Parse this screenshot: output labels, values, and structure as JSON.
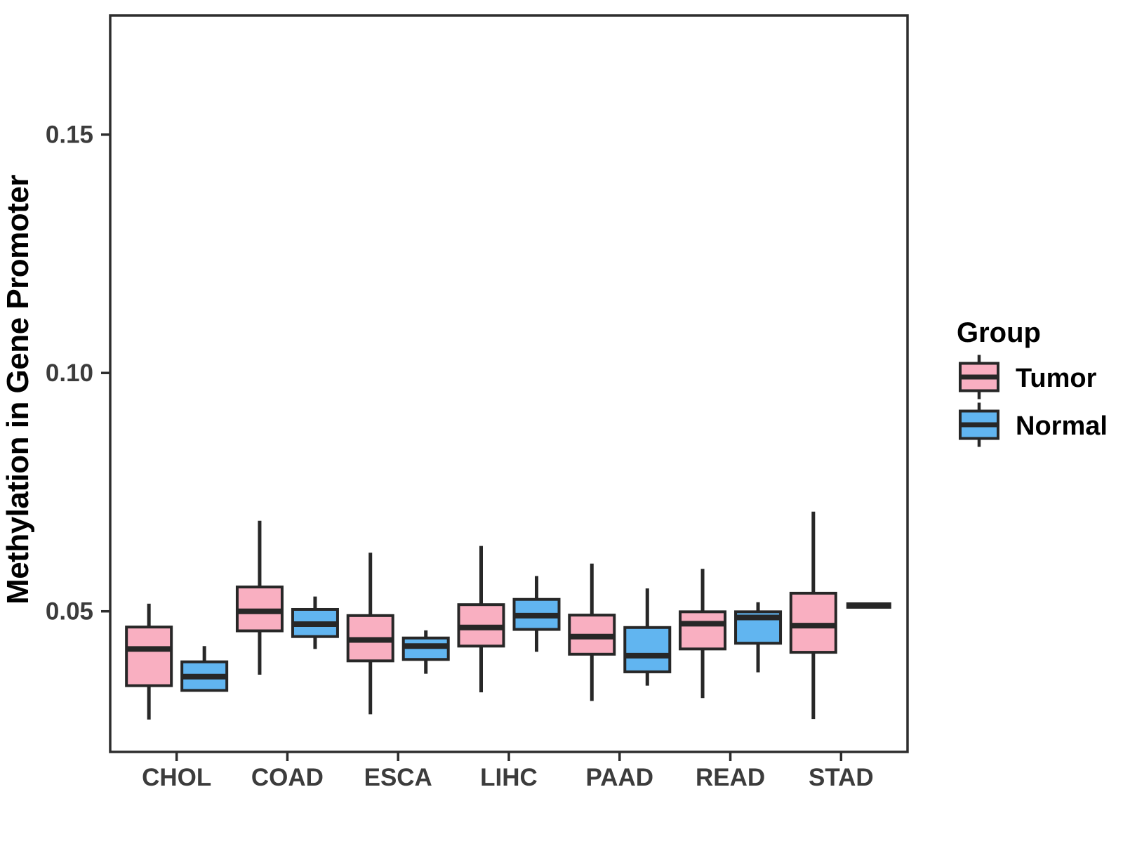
{
  "figure": {
    "background": "#FFFFFF"
  },
  "chart_data": {
    "type": "boxplot",
    "title": "",
    "xlabel": "",
    "ylabel": "Methylation in Gene Promoter",
    "categories": [
      "CHOL",
      "COAD",
      "ESCA",
      "LIHC",
      "PAAD",
      "READ",
      "STAD"
    ],
    "y_axis": {
      "ticks": [
        0.05,
        0.1,
        0.15
      ],
      "tick_labels": [
        "0.05",
        "0.10",
        "0.15"
      ],
      "range": [
        0.0205,
        0.175
      ]
    },
    "grid": "off",
    "legend": {
      "title": "Group",
      "position": "right",
      "entries": [
        {
          "label": "Tumor",
          "color": "#F9AFC1"
        },
        {
          "label": "Normal",
          "color": "#61B5F0"
        }
      ]
    },
    "series": [
      {
        "name": "Tumor",
        "color": "#F9AFC1",
        "boxes": [
          {
            "category": "CHOL",
            "min": 0.0273,
            "q1": 0.0344,
            "median": 0.0421,
            "q3": 0.0467,
            "max": 0.0516
          },
          {
            "category": "COAD",
            "min": 0.0367,
            "q1": 0.0459,
            "median": 0.05,
            "q3": 0.0551,
            "max": 0.069
          },
          {
            "category": "ESCA",
            "min": 0.0284,
            "q1": 0.0396,
            "median": 0.044,
            "q3": 0.0491,
            "max": 0.0623
          },
          {
            "category": "LIHC",
            "min": 0.033,
            "q1": 0.0427,
            "median": 0.0466,
            "q3": 0.0514,
            "max": 0.0637
          },
          {
            "category": "PAAD",
            "min": 0.0312,
            "q1": 0.041,
            "median": 0.0447,
            "q3": 0.0492,
            "max": 0.06
          },
          {
            "category": "READ",
            "min": 0.0318,
            "q1": 0.0421,
            "median": 0.0474,
            "q3": 0.0499,
            "max": 0.0589
          },
          {
            "category": "STAD",
            "min": 0.0274,
            "q1": 0.0414,
            "median": 0.047,
            "q3": 0.0538,
            "max": 0.0709
          }
        ]
      },
      {
        "name": "Normal",
        "color": "#61B5F0",
        "boxes": [
          {
            "category": "CHOL",
            "min": 0.0334,
            "q1": 0.0334,
            "median": 0.0363,
            "q3": 0.0394,
            "max": 0.0427
          },
          {
            "category": "COAD",
            "min": 0.0421,
            "q1": 0.0447,
            "median": 0.0473,
            "q3": 0.0504,
            "max": 0.0531
          },
          {
            "category": "ESCA",
            "min": 0.0369,
            "q1": 0.0399,
            "median": 0.0427,
            "q3": 0.0444,
            "max": 0.046
          },
          {
            "category": "LIHC",
            "min": 0.0415,
            "q1": 0.0462,
            "median": 0.0491,
            "q3": 0.0525,
            "max": 0.0574
          },
          {
            "category": "PAAD",
            "min": 0.0344,
            "q1": 0.0373,
            "median": 0.0407,
            "q3": 0.0466,
            "max": 0.0548
          },
          {
            "category": "READ",
            "min": 0.0372,
            "q1": 0.0433,
            "median": 0.0487,
            "q3": 0.0499,
            "max": 0.0519
          },
          {
            "category": "STAD",
            "min": 0.0512,
            "q1": 0.0512,
            "median": 0.0512,
            "q3": 0.0512,
            "max": 0.0512
          }
        ]
      }
    ],
    "style": {
      "box_stroke": "#272727",
      "axis_color": "#2E2E2E",
      "tick_text_color": "#3C3C3C",
      "title_color": "#000000"
    }
  }
}
